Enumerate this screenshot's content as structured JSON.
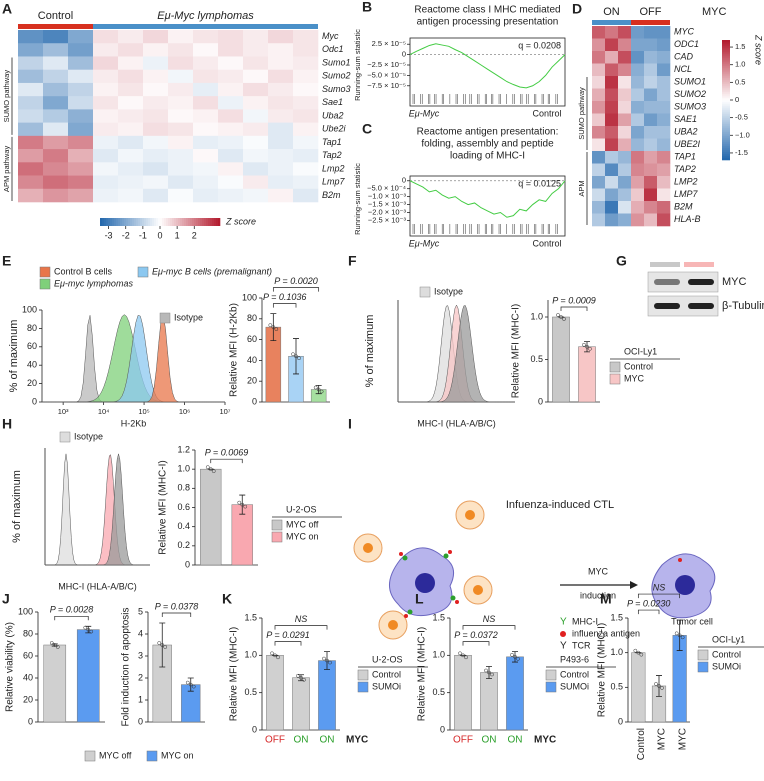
{
  "figure": {
    "A": {
      "label": "A",
      "groups": [
        "Control",
        "Eμ-Myc lymphomas"
      ],
      "group_colors": [
        "#d7301f",
        "#4a90c8"
      ],
      "genes": [
        "Myc",
        "Odc1",
        "Sumo1",
        "Sumo2",
        "Sumo3",
        "Sae1",
        "Uba2",
        "Ube2i",
        "Tap1",
        "Tap2",
        "Lmp2",
        "Lmp7",
        "B2m"
      ],
      "row_groups": [
        "SUMO pathway",
        "APM pathway"
      ],
      "matrix": [
        [
          [
            -2.5,
            -2.8,
            -2
          ],
          [
            -2,
            -1.5,
            -2.2
          ],
          [
            -1,
            -0.5,
            -1.5
          ],
          [
            -1.5,
            -1,
            -0.5
          ],
          [
            -0.5,
            -1.5,
            -1
          ],
          [
            -1,
            -2,
            -0.8
          ],
          [
            -0.8,
            -1.2,
            -1.8
          ],
          [
            -1.5,
            -0.5,
            -2
          ],
          [
            2,
            1.5,
            1.8
          ],
          [
            1.5,
            2,
            1.2
          ],
          [
            2.2,
            1.8,
            1.5
          ],
          [
            1.8,
            2.2,
            2
          ],
          [
            1.2,
            1.6,
            1.4
          ]
        ],
        [
          [
            0.5,
            0.3,
            0.6,
            0.2,
            0.4,
            0.5,
            0.3,
            0.6,
            0.4
          ],
          [
            0.3,
            0.5,
            0.2,
            0.4,
            0.1,
            0.5,
            0.3,
            0.2,
            0.4
          ],
          [
            0.6,
            0.2,
            -0.3,
            0.5,
            0.3,
            0.1,
            0.4,
            0.2,
            0.3
          ],
          [
            0.3,
            0.5,
            0.2,
            -0.2,
            0.4,
            0.3,
            0.1,
            0.5,
            0.2
          ],
          [
            0.2,
            0.4,
            0.1,
            0.3,
            -0.4,
            0.2,
            0.5,
            0.3,
            0.1
          ],
          [
            0.4,
            0.1,
            0.3,
            0.2,
            0.5,
            -0.3,
            0.2,
            0.4,
            0.3
          ],
          [
            0.2,
            0.3,
            0.4,
            0.1,
            0.2,
            0.5,
            -0.2,
            0.3,
            0.4
          ],
          [
            0.3,
            0.2,
            0.5,
            0.4,
            0.1,
            0.2,
            0.3,
            -0.5,
            0.2
          ],
          [
            -0.3,
            -0.5,
            -0.2,
            0.2,
            -0.4,
            -0.3,
            -0.1,
            -0.5,
            -0.2
          ],
          [
            -0.5,
            -0.2,
            -0.4,
            -0.3,
            0.1,
            -0.5,
            -0.2,
            -0.3,
            -0.4
          ],
          [
            -0.2,
            -0.4,
            -0.6,
            -0.3,
            -0.2,
            0.2,
            -0.5,
            -0.3,
            -0.1
          ],
          [
            -0.4,
            -0.3,
            -0.2,
            -0.5,
            -0.3,
            -0.1,
            0.3,
            -0.4,
            -0.3
          ],
          [
            -0.3,
            -0.2,
            -0.5,
            -0.1,
            -0.4,
            -0.3,
            -0.2,
            0.2,
            -0.5
          ]
        ]
      ],
      "colorbar": {
        "ticks": [
          -3,
          -2,
          -1,
          0,
          1,
          2
        ],
        "label": "Z score",
        "lim": [
          -3.5,
          3.5
        ]
      }
    },
    "B": {
      "label": "B",
      "title_lines": [
        "Reactome class I MHC mediated",
        "antigen processing presentation"
      ],
      "q": "q = 0.0208",
      "ylabel": "Running-sum statistic",
      "ylim": [
        -9e-05,
        4e-05
      ],
      "yticks": [
        {
          "value": 2.5e-05,
          "label": "2.5 × 10⁻⁵"
        },
        0,
        {
          "value": -2.5e-05,
          "label": "−2.5 × 10⁻⁵"
        },
        {
          "value": -5e-05,
          "label": "−5.0 × 10⁻⁵"
        },
        {
          "value": -7.5e-05,
          "label": "−7.5 × 10⁻⁵"
        }
      ],
      "values": [
        0,
        8e-06,
        1.5e-05,
        2.2e-05,
        2.6e-05,
        2.3e-05,
        2e-05,
        1.2e-05,
        5e-06,
        -5e-06,
        -1.5e-05,
        -2.5e-05,
        -3.5e-05,
        -4.5e-05,
        -5.5e-05,
        -6.5e-05,
        -7.2e-05,
        -7.8e-05,
        -8e-05,
        -7.5e-05,
        -6.5e-05,
        -5e-05,
        -3e-05,
        -1.5e-05,
        0
      ],
      "color": "#44cc44",
      "x_labels": [
        "Eμ-Myc",
        "Control"
      ]
    },
    "C": {
      "label": "C",
      "title_lines": [
        "Reactome antigen presentation:",
        "folding, assembly and peptide",
        "loading of MHC-I"
      ],
      "q": "q = 0.0125",
      "ylabel": "Running-sum statistic",
      "ylim": [
        -0.0026,
        0.0003
      ],
      "yticks": [
        0,
        {
          "value": -0.0005,
          "label": "−5.0 × 10⁻⁴"
        },
        {
          "value": -0.001,
          "label": "−1.0 × 10⁻³"
        },
        {
          "value": -0.0015,
          "label": "−1.5 × 10⁻³"
        },
        {
          "value": -0.002,
          "label": "−2.0 × 10⁻³"
        },
        {
          "value": -0.0025,
          "label": "−2.5 × 10⁻³"
        }
      ],
      "values": [
        0,
        -0.0002,
        -0.0004,
        -0.0007,
        -0.0006,
        -0.0009,
        -0.0011,
        -0.001,
        -0.0013,
        -0.0015,
        -0.0014,
        -0.0017,
        -0.0019,
        -0.0021,
        -0.002,
        -0.0023,
        -0.0022,
        -0.0018,
        -0.0019,
        -0.0015,
        -0.0012,
        -0.0013,
        -0.0008,
        -0.0005,
        0
      ],
      "color": "#44cc44",
      "x_labels": [
        "Eμ-Myc",
        "Control"
      ]
    },
    "D": {
      "label": "D",
      "groups": [
        "ON",
        "OFF"
      ],
      "group_colors": [
        "#4a90c8",
        "#d7301f"
      ],
      "group_title": "MYC",
      "genes": [
        "MYC",
        "ODC1",
        "CAD",
        "NCL",
        "SUMO1",
        "SUMO2",
        "SUMO3",
        "SAE1",
        "UBA2",
        "UBE2I",
        "TAP1",
        "TAP2",
        "LMP2",
        "LMP7",
        "B2M",
        "HLA-B"
      ],
      "row_groups": [
        "SUMO pathway",
        "APM"
      ],
      "matrix": [
        [
          [
            1.2,
            1,
            1.3
          ],
          [
            0.8,
            1.4,
            0.9
          ],
          [
            1,
            0.6,
            1.3
          ],
          [
            0.5,
            1.2,
            0.9
          ],
          [
            0.3,
            1.5,
            0.2
          ],
          [
            0.6,
            1.3,
            0.4
          ],
          [
            0.8,
            1.4,
            0.3
          ],
          [
            0.4,
            1.5,
            0.7
          ],
          [
            0.9,
            1.2,
            0.3
          ],
          [
            0.2,
            1.4,
            0.6
          ],
          [
            -1.2,
            -0.6,
            -0.8
          ],
          [
            -0.5,
            -1.3,
            -0.6
          ],
          [
            -1,
            -0.4,
            -1
          ],
          [
            -0.4,
            -1,
            -0.7
          ],
          [
            -0.8,
            -1.5,
            -0.3
          ],
          [
            -0.6,
            -1.1,
            -0.9
          ]
        ],
        [
          [
            -1.1,
            -1.2,
            -1.2
          ],
          [
            -1,
            -1,
            -1.1
          ],
          [
            -1.2,
            -0.8,
            -0.9
          ],
          [
            -0.9,
            -0.6,
            -1.1
          ],
          [
            -0.8,
            -0.5,
            -0.7
          ],
          [
            -0.6,
            -1,
            -0.7
          ],
          [
            -0.9,
            -0.8,
            -0.8
          ],
          [
            -0.6,
            -1.1,
            -0.9
          ],
          [
            -1,
            -0.7,
            -0.7
          ],
          [
            -0.8,
            -0.6,
            -0.8
          ],
          [
            1,
            0.7,
            0.9
          ],
          [
            0.9,
            0.8,
            0.7
          ],
          [
            0.7,
            1.2,
            0.5
          ],
          [
            0.4,
            1.5,
            0.2
          ],
          [
            0.6,
            0.9,
            1.1
          ],
          [
            0.8,
            0.5,
            1.3
          ]
        ]
      ],
      "colorbar": {
        "ticks": [
          1.5,
          {
            "value": 1,
            "label": "1.0"
          },
          0.5,
          0,
          -0.5,
          {
            "value": -1,
            "label": "−1.0"
          },
          -1.5
        ],
        "label": "Z score",
        "lim": [
          -1.7,
          1.7
        ]
      }
    },
    "E": {
      "label": "E",
      "hist": {
        "ylabel": "% of maximum",
        "ylim": [
          0,
          100
        ],
        "yticks": [
          0,
          20,
          40,
          60,
          80,
          100
        ],
        "xlabel": "H-2Kb",
        "xlim": [
          300,
          10000000
        ],
        "xticks": [
          {
            "value": 1000,
            "label": "10³"
          },
          {
            "value": 10000,
            "label": "10⁴"
          },
          {
            "value": 100000,
            "label": "10⁵"
          },
          {
            "value": 1000000,
            "label": "10⁶"
          },
          {
            "value": 10000000,
            "label": "10⁷"
          }
        ],
        "isotype": "Isotype",
        "isotype_color": "#b8b8b8",
        "legend": [
          {
            "name": "Control B cells",
            "color": "#e8764a"
          },
          {
            "name": "Eμ-myc B cells (premalignant)",
            "color": "#8cc8f0"
          },
          {
            "name": "Eμ-myc lymphomas",
            "color": "#7fd07a"
          }
        ]
      },
      "bar": {
        "ylabel": "Relative MFI (H-2Kb)",
        "ylim": [
          0,
          100
        ],
        "yticks": [
          0,
          20,
          40,
          60,
          80,
          100
        ],
        "values": [
          72,
          44,
          12
        ],
        "errors": [
          13,
          17,
          4
        ],
        "colors": [
          "#e8825e",
          "#a9d3f5",
          "#a6e0a0"
        ],
        "p_labels": [
          "P = 0.1036",
          "P = 0.0020"
        ]
      }
    },
    "F": {
      "label": "F",
      "hist": {
        "ylabel": "% of maximum",
        "xlabel": "MHC-I (HLA-A/B/C)",
        "isotype": "Isotype",
        "isotype_color": "#dddddd"
      },
      "bar": {
        "ylabel": "Relative MFI (MHC-I)",
        "ylim": [
          0,
          1.2
        ],
        "yticks": [
          0,
          0.5,
          {
            "value": 1,
            "label": "1.0"
          }
        ],
        "values": [
          1,
          0.65
        ],
        "errors": [
          0,
          0.06
        ],
        "colors": [
          "#c8c8c8",
          "#f7c6c6"
        ],
        "p_labels": [
          "P = 0.0009"
        ]
      },
      "legend": {
        "title": "OCI-Ly1",
        "entries": [
          {
            "name": "Control",
            "color": "#c8c8c8"
          },
          {
            "name": "MYC",
            "color": "#f7c6c6"
          }
        ]
      }
    },
    "G": {
      "label": "G",
      "bands": [
        "MYC",
        "β-Tubulin"
      ],
      "lane_colors": [
        "#c8c8c8",
        "#f7b6b6"
      ]
    },
    "H": {
      "label": "H",
      "hist": {
        "ylabel": "% of maximum",
        "xlabel": "MHC-I (HLA-A/B/C)",
        "isotype": "Isotype",
        "isotype_color": "#dddddd"
      },
      "bar": {
        "ylabel": "Relative MFI (MHC-I)",
        "ylim": [
          0,
          1.2
        ],
        "yticks": [
          0,
          0.2,
          0.4,
          0.6,
          0.8,
          {
            "value": 1,
            "label": "1.0"
          },
          1.2
        ],
        "values": [
          1,
          0.63
        ],
        "errors": [
          0,
          0.1
        ],
        "colors": [
          "#c8c8c8",
          "#f9a8b0"
        ],
        "p_labels": [
          "P = 0.0069"
        ]
      },
      "legend": {
        "title": "U-2-OS",
        "entries": [
          {
            "name": "MYC off",
            "color": "#c8c8c8"
          },
          {
            "name": "MYC on",
            "color": "#f9a8b0"
          }
        ]
      }
    },
    "I": {
      "label": "I",
      "title": "Infuenza-induced CTL",
      "arrow_top": "MYC",
      "arrow_bottom": "induction",
      "tumor": "Tumor cell",
      "legend": [
        "MHC-I",
        "influenza antigen",
        "TCR"
      ]
    },
    "J": {
      "label": "J",
      "left": {
        "ylabel": "Relative viability (%)",
        "ylim": [
          0,
          100
        ],
        "yticks": [
          0,
          20,
          40,
          60,
          80,
          100
        ],
        "values": [
          70,
          84
        ],
        "errors": [
          1,
          3
        ],
        "colors": [
          "#d0d0d0",
          "#5b9bf0"
        ],
        "p_labels": [
          "P = 0.0028"
        ]
      },
      "right": {
        "ylabel": "Fold induction of apoptosis",
        "ylim": [
          0,
          5
        ],
        "yticks": [
          0,
          1,
          2,
          3,
          4,
          5
        ],
        "values": [
          3.5,
          1.7
        ],
        "errors": [
          1,
          0.3
        ],
        "colors": [
          "#d0d0d0",
          "#5b9bf0"
        ],
        "p_labels": [
          "P = 0.0378"
        ]
      },
      "legend": {
        "entries": [
          {
            "name": "MYC off",
            "color": "#d0d0d0"
          },
          {
            "name": "MYC on",
            "color": "#5b9bf0"
          }
        ]
      }
    },
    "K": {
      "label": "K",
      "bar": {
        "ylabel": "Relative MFI (MHC-I)",
        "ylim": [
          0,
          1.5
        ],
        "yticks": [
          0,
          0.5,
          {
            "value": 1,
            "label": "1.0"
          },
          1.5
        ],
        "categories": [
          "OFF",
          "ON",
          "ON"
        ],
        "category_colors": [
          "#d62728",
          "#2ca02c",
          "#2ca02c"
        ],
        "axis_suffix": "MYC",
        "values": [
          1,
          0.7,
          0.93
        ],
        "errors": [
          0,
          0.04,
          0.12
        ],
        "colors": [
          "#d0d0d0",
          "#d0d0d0",
          "#5b9bf0"
        ],
        "p_labels": [
          "P = 0.0291",
          "NS"
        ]
      },
      "legend": {
        "title": "U-2-OS",
        "entries": [
          {
            "name": "Control",
            "color": "#d0d0d0"
          },
          {
            "name": "SUMOi",
            "color": "#5b9bf0"
          }
        ]
      }
    },
    "L": {
      "label": "L",
      "bar": {
        "ylabel": "Relative MFI (MHC-I)",
        "ylim": [
          0,
          1.5
        ],
        "yticks": [
          0,
          0.5,
          {
            "value": 1,
            "label": "1.0"
          },
          1.5
        ],
        "categories": [
          "OFF",
          "ON",
          "ON"
        ],
        "category_colors": [
          "#d62728",
          "#2ca02c",
          "#2ca02c"
        ],
        "axis_suffix": "MYC",
        "values": [
          1,
          0.77,
          0.98
        ],
        "errors": [
          0,
          0.08,
          0.07
        ],
        "colors": [
          "#d0d0d0",
          "#d0d0d0",
          "#5b9bf0"
        ],
        "p_labels": [
          "P = 0.0372",
          "NS"
        ]
      },
      "legend": {
        "title": "P493-6",
        "entries": [
          {
            "name": "Control",
            "color": "#d0d0d0"
          },
          {
            "name": "SUMOi",
            "color": "#5b9bf0"
          }
        ]
      }
    },
    "M": {
      "label": "M",
      "bar": {
        "ylabel": "Relative MFI (MHC-I)",
        "ylim": [
          0,
          1.5
        ],
        "yticks": [
          0,
          0.5,
          {
            "value": 1,
            "label": "1.0"
          },
          1.5
        ],
        "categories": [
          "Control",
          "MYC",
          "MYC"
        ],
        "values": [
          1,
          0.52,
          1.25
        ],
        "errors": [
          0,
          0.15,
          0.22
        ],
        "colors": [
          "#d0d0d0",
          "#d0d0d0",
          "#5b9bf0"
        ],
        "p_labels": [
          "P = 0.0230",
          "NS"
        ]
      },
      "legend": {
        "title": "OCI-Ly1",
        "entries": [
          {
            "name": "Control",
            "color": "#d0d0d0"
          },
          {
            "name": "SUMOi",
            "color": "#5b9bf0"
          }
        ]
      }
    }
  }
}
